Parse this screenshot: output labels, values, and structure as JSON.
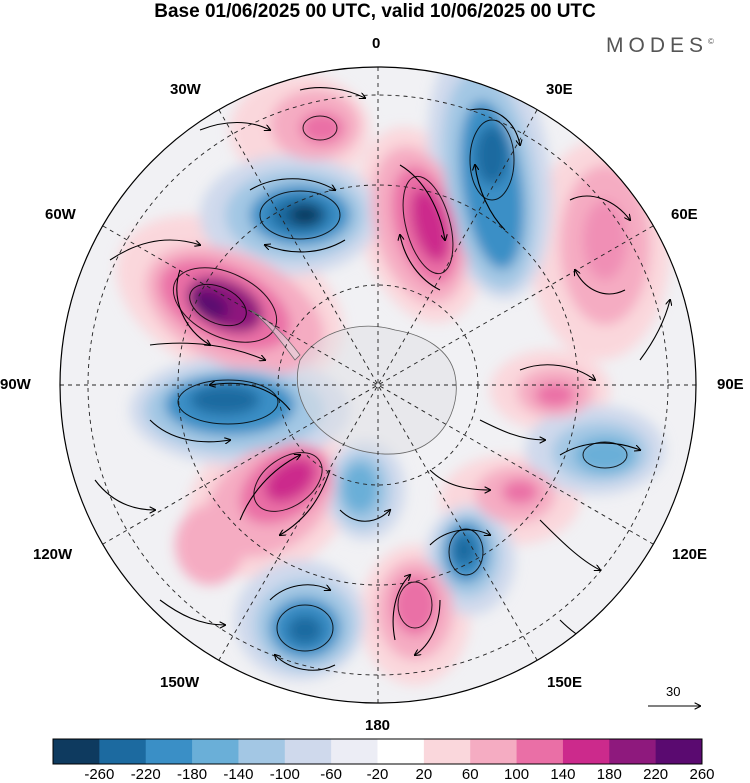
{
  "title": "Base 01/06/2025 00 UTC, valid 10/06/2025 00 UTC",
  "brand": "MODES",
  "brand_mark": "©",
  "longitude_labels": {
    "top": "0",
    "n30e": "30E",
    "n60e": "60E",
    "e90": "90E",
    "s120e": "120E",
    "s150e": "150E",
    "bottom": "180",
    "s150w": "150W",
    "s120w": "120W",
    "w90": "90W",
    "n60w": "60W",
    "n30w": "30W"
  },
  "vector_reference": "30",
  "colorbar": {
    "colors": [
      "#0e3a5f",
      "#1c6aa0",
      "#3a8fc6",
      "#6aafd8",
      "#a3c7e4",
      "#cfd9ec",
      "#ecedf5",
      "#ffffff",
      "#fad7dc",
      "#f5acc2",
      "#ea6fa6",
      "#cc2a8c",
      "#8e197d",
      "#5a0a70"
    ],
    "levels": [
      "-260",
      "-220",
      "-180",
      "-140",
      "-100",
      "-60",
      "-20",
      "20",
      "60",
      "100",
      "140",
      "180",
      "220",
      "260"
    ]
  },
  "anomalies": [
    {
      "value": 220,
      "label": "positive-center-60w"
    },
    {
      "value": 200,
      "label": "positive-center-15e"
    },
    {
      "value": 200,
      "label": "positive-center-130w"
    },
    {
      "value": 120,
      "label": "positive-center-0"
    },
    {
      "value": 120,
      "label": "positive-center-60e"
    },
    {
      "value": 140,
      "label": "positive-center-90e"
    },
    {
      "value": 140,
      "label": "positive-center-165e"
    },
    {
      "value": 120,
      "label": "positive-center-125w"
    },
    {
      "value": 100,
      "label": "positive-center-135e"
    },
    {
      "value": -220,
      "label": "negative-center-35w"
    },
    {
      "value": -200,
      "label": "negative-center-30e"
    },
    {
      "value": -180,
      "label": "negative-center-90w"
    },
    {
      "value": -160,
      "label": "negative-center-140w"
    },
    {
      "value": -180,
      "label": "negative-center-160e"
    },
    {
      "value": -140,
      "label": "negative-center-110e"
    },
    {
      "value": -140,
      "label": "negative-center-175w"
    }
  ]
}
